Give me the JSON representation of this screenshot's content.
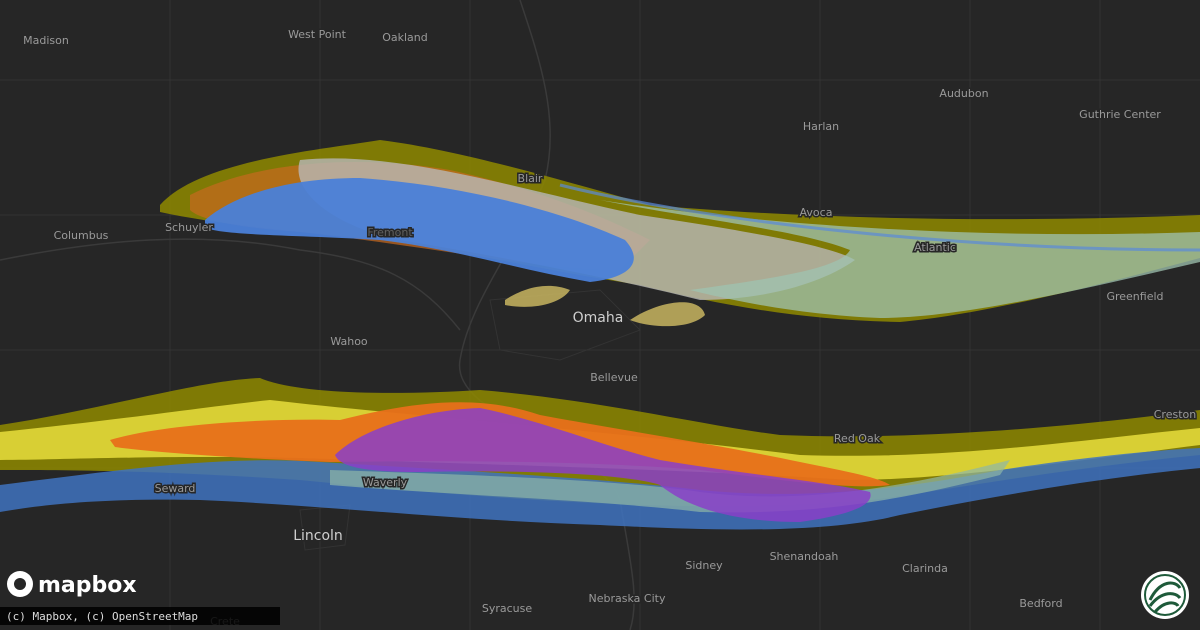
{
  "map": {
    "places": [
      "Madison",
      "West Point",
      "Oakland",
      "Audubon",
      "Harlan",
      "Guthrie Center",
      "Blair",
      "Avoca",
      "Atlantic",
      "Columbus",
      "Schuyler",
      "Greenfield",
      "Omaha",
      "Wahoo",
      "Bellevue",
      "Red Oak",
      "Creston",
      "Seward",
      "Waverly",
      "Lincoln",
      "Shenandoah",
      "Sidney",
      "Clarinda",
      "Syracuse",
      "Nebraska City",
      "Bedford",
      "Crete",
      "Fremont"
    ],
    "logo": "mapbox",
    "attribution": "(c) Mapbox, (c) OpenStreetMap"
  }
}
